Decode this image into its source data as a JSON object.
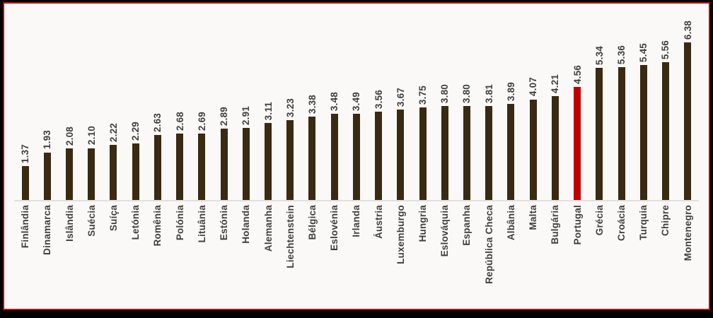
{
  "chart_data": {
    "type": "bar",
    "title": "",
    "xlabel": "",
    "ylabel": "",
    "ylim": [
      0,
      7
    ],
    "grid": false,
    "legend": false,
    "categories": [
      "Finlândia",
      "Dinamarca",
      "Islândia",
      "Suécia",
      "Suíça",
      "Letónia",
      "Romênia",
      "Polónia",
      "Lituânia",
      "Estónia",
      "Holanda",
      "Alemanha",
      "Liechtenstein",
      "Bélgica",
      "Eslovénia",
      "Irlanda",
      "Áustria",
      "Luxemburgo",
      "Hungria",
      "Eslováquia",
      "Espanha",
      "República Checa",
      "Albânia",
      "Malta",
      "Bulgária",
      "Portugal",
      "Grécia",
      "Croácia",
      "Turquia",
      "Chipre",
      "Montenegro"
    ],
    "values": [
      1.37,
      1.93,
      2.08,
      2.1,
      2.22,
      2.29,
      2.63,
      2.68,
      2.69,
      2.89,
      2.91,
      3.11,
      3.23,
      3.38,
      3.48,
      3.49,
      3.56,
      3.67,
      3.75,
      3.8,
      3.8,
      3.81,
      3.89,
      4.07,
      4.21,
      4.56,
      5.34,
      5.36,
      5.45,
      5.56,
      6.38
    ],
    "value_labels": [
      "1.37",
      "1.93",
      "2.08",
      "2.10",
      "2.22",
      "2.29",
      "2.63",
      "2.68",
      "2.69",
      "2.89",
      "2.91",
      "3.11",
      "3.23",
      "3.38",
      "3.48",
      "3.49",
      "3.56",
      "3.67",
      "3.75",
      "3.80",
      "3.80",
      "3.81",
      "3.89",
      "4.07",
      "4.21",
      "4.56",
      "5.34",
      "5.36",
      "5.45",
      "5.56",
      "6.38"
    ],
    "highlight_category": "Portugal",
    "colors": {
      "bar": "#3A2A12",
      "highlight_bar": "#C00000",
      "label": "#3F3F3F",
      "axis_line": "#E2E0DE",
      "plot_background": "#FAF9F8",
      "frame_border": "#C00000",
      "outer_background": "#000000"
    }
  }
}
